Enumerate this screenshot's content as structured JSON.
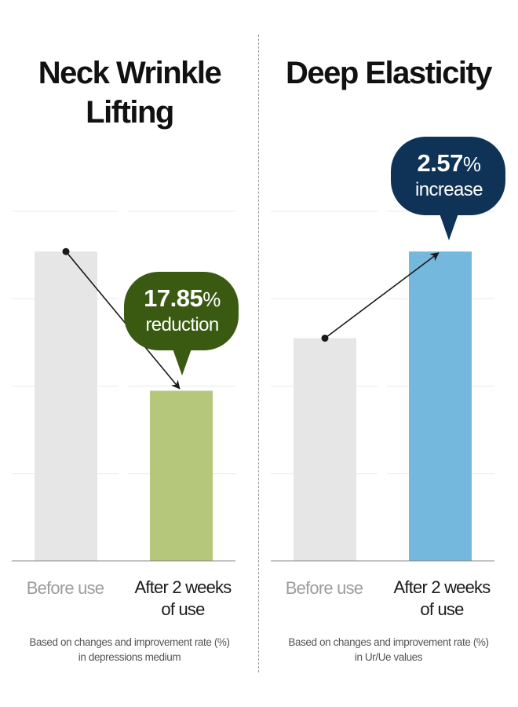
{
  "chart_data": [
    {
      "type": "bar",
      "title": "Neck Wrinkle Lifting",
      "title_lines": [
        "Neck Wrinkle",
        "Lifting"
      ],
      "categories": [
        "Before use",
        "After 2 weeks of use"
      ],
      "category_lines": [
        [
          "Before use"
        ],
        [
          "After 2 weeks",
          "of use"
        ]
      ],
      "values": [
        100,
        55
      ],
      "ylim": [
        0,
        113
      ],
      "grid": true,
      "bar_colors": [
        "#e6e6e6",
        "#b5c77a"
      ],
      "annotation": {
        "value": "17.85",
        "unit": "%",
        "text": "reduction",
        "color": "#3a5a12",
        "direction": "down"
      },
      "note": [
        "Based on changes and improvement rate (%)",
        "in depressions medium"
      ]
    },
    {
      "type": "bar",
      "title": "Deep Elasticity",
      "title_lines": [
        "Deep Elasticity"
      ],
      "categories": [
        "Before use",
        "After 2 weeks of use"
      ],
      "category_lines": [
        [
          "Before use"
        ],
        [
          "After 2 weeks",
          "of use"
        ]
      ],
      "values": [
        72,
        100
      ],
      "ylim": [
        0,
        113
      ],
      "grid": true,
      "bar_colors": [
        "#e6e6e6",
        "#74b8de"
      ],
      "annotation": {
        "value": "2.57",
        "unit": "%",
        "text": "increase",
        "color": "#0e3357",
        "direction": "up"
      },
      "note": [
        "Based on changes and improvement rate (%)",
        "in Ur/Ue values"
      ]
    }
  ]
}
